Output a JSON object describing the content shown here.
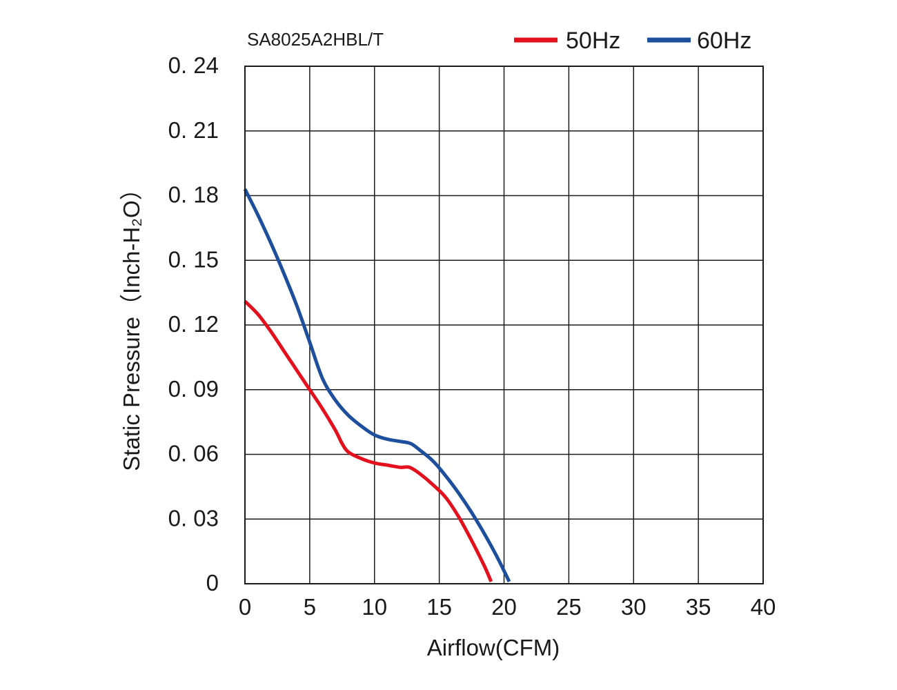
{
  "chart_data": {
    "type": "line",
    "title": "SA8025A2HBL/T",
    "xlabel": "Airflow(CFM)",
    "ylabel": "Static Pressure（Inch-H₂O）",
    "xlim": [
      0,
      40
    ],
    "ylim": [
      0,
      0.24
    ],
    "x_ticks": [
      0,
      5,
      10,
      15,
      20,
      25,
      30,
      35,
      40
    ],
    "x_tick_labels": [
      "0",
      "5",
      "10",
      "15",
      "20",
      "25",
      "30",
      "35",
      "40"
    ],
    "y_ticks": [
      0,
      0.03,
      0.06,
      0.09,
      0.12,
      0.15,
      0.18,
      0.21,
      0.24
    ],
    "y_tick_labels": [
      "0",
      "0. 03",
      "0. 06",
      "0. 09",
      "0. 12",
      "0. 15",
      "0. 18",
      "0. 21",
      "0. 24"
    ],
    "grid": true,
    "legend_position": "top-right",
    "series": [
      {
        "name": "50Hz",
        "color": "#e3101d",
        "points": [
          [
            0,
            0.131
          ],
          [
            1,
            0.125
          ],
          [
            2,
            0.117
          ],
          [
            3,
            0.108
          ],
          [
            4,
            0.099
          ],
          [
            5,
            0.09
          ],
          [
            6,
            0.081
          ],
          [
            7,
            0.071
          ],
          [
            7.5,
            0.065
          ],
          [
            8,
            0.061
          ],
          [
            9,
            0.058
          ],
          [
            10,
            0.056
          ],
          [
            11,
            0.055
          ],
          [
            12,
            0.054
          ],
          [
            12.7,
            0.054
          ],
          [
            13.5,
            0.051
          ],
          [
            14.5,
            0.046
          ],
          [
            15.5,
            0.04
          ],
          [
            16.5,
            0.031
          ],
          [
            17.5,
            0.02
          ],
          [
            18.5,
            0.008
          ],
          [
            19,
            0.001
          ]
        ]
      },
      {
        "name": "60Hz",
        "color": "#1d4f9c",
        "points": [
          [
            0,
            0.183
          ],
          [
            1,
            0.171
          ],
          [
            2,
            0.158
          ],
          [
            3,
            0.144
          ],
          [
            4,
            0.129
          ],
          [
            5,
            0.112
          ],
          [
            6,
            0.095
          ],
          [
            7,
            0.085
          ],
          [
            8,
            0.078
          ],
          [
            9,
            0.073
          ],
          [
            10,
            0.069
          ],
          [
            11,
            0.067
          ],
          [
            12,
            0.066
          ],
          [
            12.8,
            0.065
          ],
          [
            13.5,
            0.062
          ],
          [
            14.5,
            0.057
          ],
          [
            15.5,
            0.05
          ],
          [
            16.5,
            0.042
          ],
          [
            17.5,
            0.033
          ],
          [
            18.5,
            0.023
          ],
          [
            19.5,
            0.012
          ],
          [
            20.4,
            0.001
          ]
        ]
      }
    ]
  }
}
